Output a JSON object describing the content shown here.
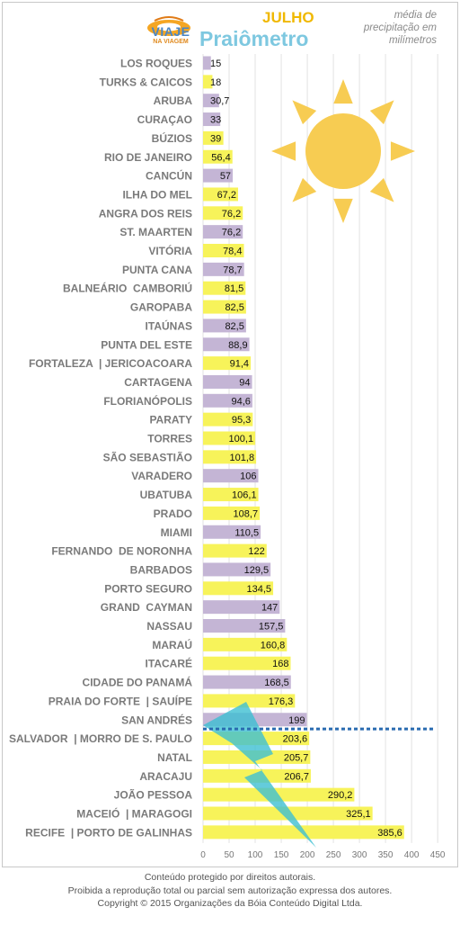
{
  "header": {
    "logo_text": "VIAJE",
    "logo_subtext": "NA VIAGEM",
    "month": "JULHO",
    "title": "Praiômetro",
    "subtitle_lines": [
      "média de",
      "precipitação em",
      "milímetros"
    ]
  },
  "footer": {
    "line1": "Conteúdo protegido por direitos autorais.",
    "line2": "Proibida a reprodução total ou parcial sem autorização expressa dos autores.",
    "line3": "Copyright © 2015 Organizações da Bóia Conteúdo Digital Ltda."
  },
  "colors": {
    "yellow_bar": "#f7f35a",
    "purple_bar": "#c4b5d5",
    "sun": "#f7cc52",
    "lightning": "#3dbfd2",
    "threshold_line": "#2a6bb0",
    "label_text": "#7a7a7a",
    "value_text": "#111111"
  },
  "chart_data": {
    "type": "bar",
    "orientation": "horizontal",
    "categories": [
      "LOS ROQUES",
      "TURKS & CAICOS",
      "ARUBA",
      "CURAÇAO",
      "BÚZIOS",
      "RIO DE JANEIRO",
      "CANCÚN",
      "ILHA DO MEL",
      "ANGRA DOS REIS",
      "ST. MAARTEN",
      "VITÓRIA",
      "PUNTA CANA",
      "BALNEÁRIO  CAMBORIÚ",
      "GAROPABA",
      "ITAÚNAS",
      "PUNTA DEL ESTE",
      "FORTALEZA  | JERICOACOARA",
      "CARTAGENA",
      "FLORIANÓPOLIS",
      "PARATY",
      "TORRES",
      "SÃO SEBASTIÃO",
      "VARADERO",
      "UBATUBA",
      "PRADO",
      "MIAMI",
      "FERNANDO  DE NORONHA",
      "BARBADOS",
      "PORTO SEGURO",
      "GRAND  CAYMAN",
      "NASSAU",
      "MARAÚ",
      "ITACARÉ",
      "CIDADE DO PANAMÁ",
      "PRAIA DO FORTE  | SAUÍPE",
      "SAN ANDRÉS",
      "SALVADOR  | MORRO DE S. PAULO",
      "NATAL",
      "ARACAJU",
      "JOÃO PESSOA",
      "MACEIÓ  | MARAGOGI",
      "RECIFE  | PORTO DE GALINHAS"
    ],
    "values": [
      15,
      18,
      30.7,
      33,
      39,
      56.4,
      57,
      67.2,
      76.2,
      76.2,
      78.4,
      78.7,
      81.5,
      82.5,
      82.5,
      88.9,
      91.4,
      94,
      94.6,
      95.3,
      100.1,
      101.8,
      106,
      106.1,
      108.7,
      110.5,
      122,
      129.5,
      134.5,
      147,
      157.5,
      160.8,
      168,
      168.5,
      176.3,
      199,
      203.6,
      205.7,
      206.7,
      290.2,
      325.1,
      385.6
    ],
    "value_labels": [
      "15",
      "18",
      "30,7",
      "33",
      "39",
      "56,4",
      "57",
      "67,2",
      "76,2",
      "76,2",
      "78,4",
      "78,7",
      "81,5",
      "82,5",
      "82,5",
      "88,9",
      "91,4",
      "94",
      "94,6",
      "95,3",
      "100,1",
      "101,8",
      "106",
      "106,1",
      "108,7",
      "110,5",
      "122",
      "129,5",
      "134,5",
      "147",
      "157,5",
      "160,8",
      "168",
      "168,5",
      "176,3",
      "199",
      "203,6",
      "205,7",
      "206,7",
      "290,2",
      "325,1",
      "385,6"
    ],
    "bar_colors": [
      "purple",
      "yellow",
      "purple",
      "purple",
      "yellow",
      "yellow",
      "purple",
      "yellow",
      "yellow",
      "purple",
      "yellow",
      "purple",
      "yellow",
      "yellow",
      "purple",
      "purple",
      "yellow",
      "purple",
      "purple",
      "yellow",
      "yellow",
      "yellow",
      "purple",
      "yellow",
      "yellow",
      "purple",
      "yellow",
      "purple",
      "yellow",
      "purple",
      "purple",
      "yellow",
      "yellow",
      "purple",
      "yellow",
      "purple",
      "yellow",
      "yellow",
      "yellow",
      "yellow",
      "yellow",
      "yellow"
    ],
    "xlim": [
      0,
      450
    ],
    "xticks": [
      0,
      50,
      100,
      150,
      200,
      250,
      300,
      350,
      400,
      450
    ],
    "grid": true,
    "threshold_after_category": "SAN ANDRÉS"
  }
}
